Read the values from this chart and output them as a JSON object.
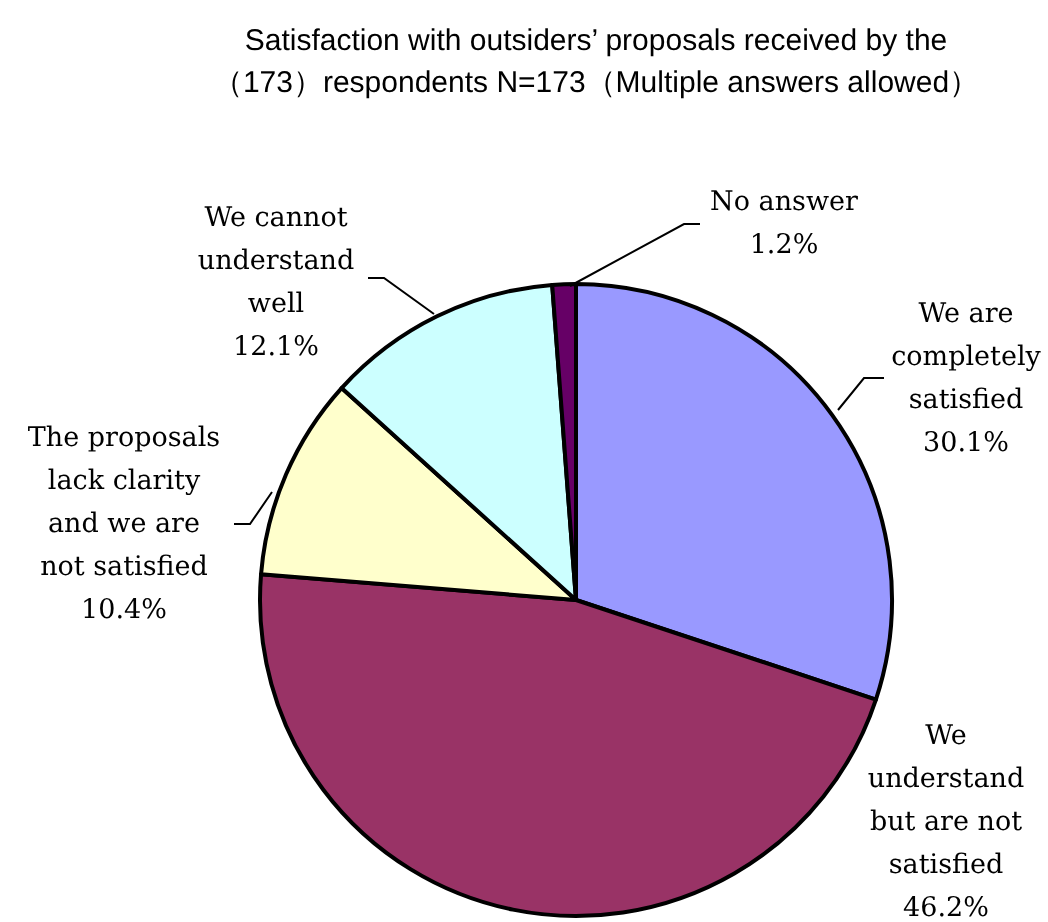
{
  "chart_data": {
    "type": "pie",
    "title": "Satisfaction with outsiders’ proposals received by the\n（173）respondents N=173（Multiple answers allowed）",
    "categories": [
      "We are\ncompletely\nsatisfied",
      "We\nunderstand\nbut are not\nsatisfied",
      "The proposals\nlack clarity\nand we are\nnot satisfied",
      "We cannot\nunderstand\nwell",
      "No answer"
    ],
    "values": [
      30.1,
      46.2,
      10.4,
      12.1,
      1.2
    ],
    "colors": [
      "#9999ff",
      "#993366",
      "#ffffcc",
      "#ccffff",
      "#660066"
    ],
    "value_labels": [
      "30.1%",
      "46.2%",
      "10.4%",
      "12.1%",
      "1.2%"
    ]
  }
}
